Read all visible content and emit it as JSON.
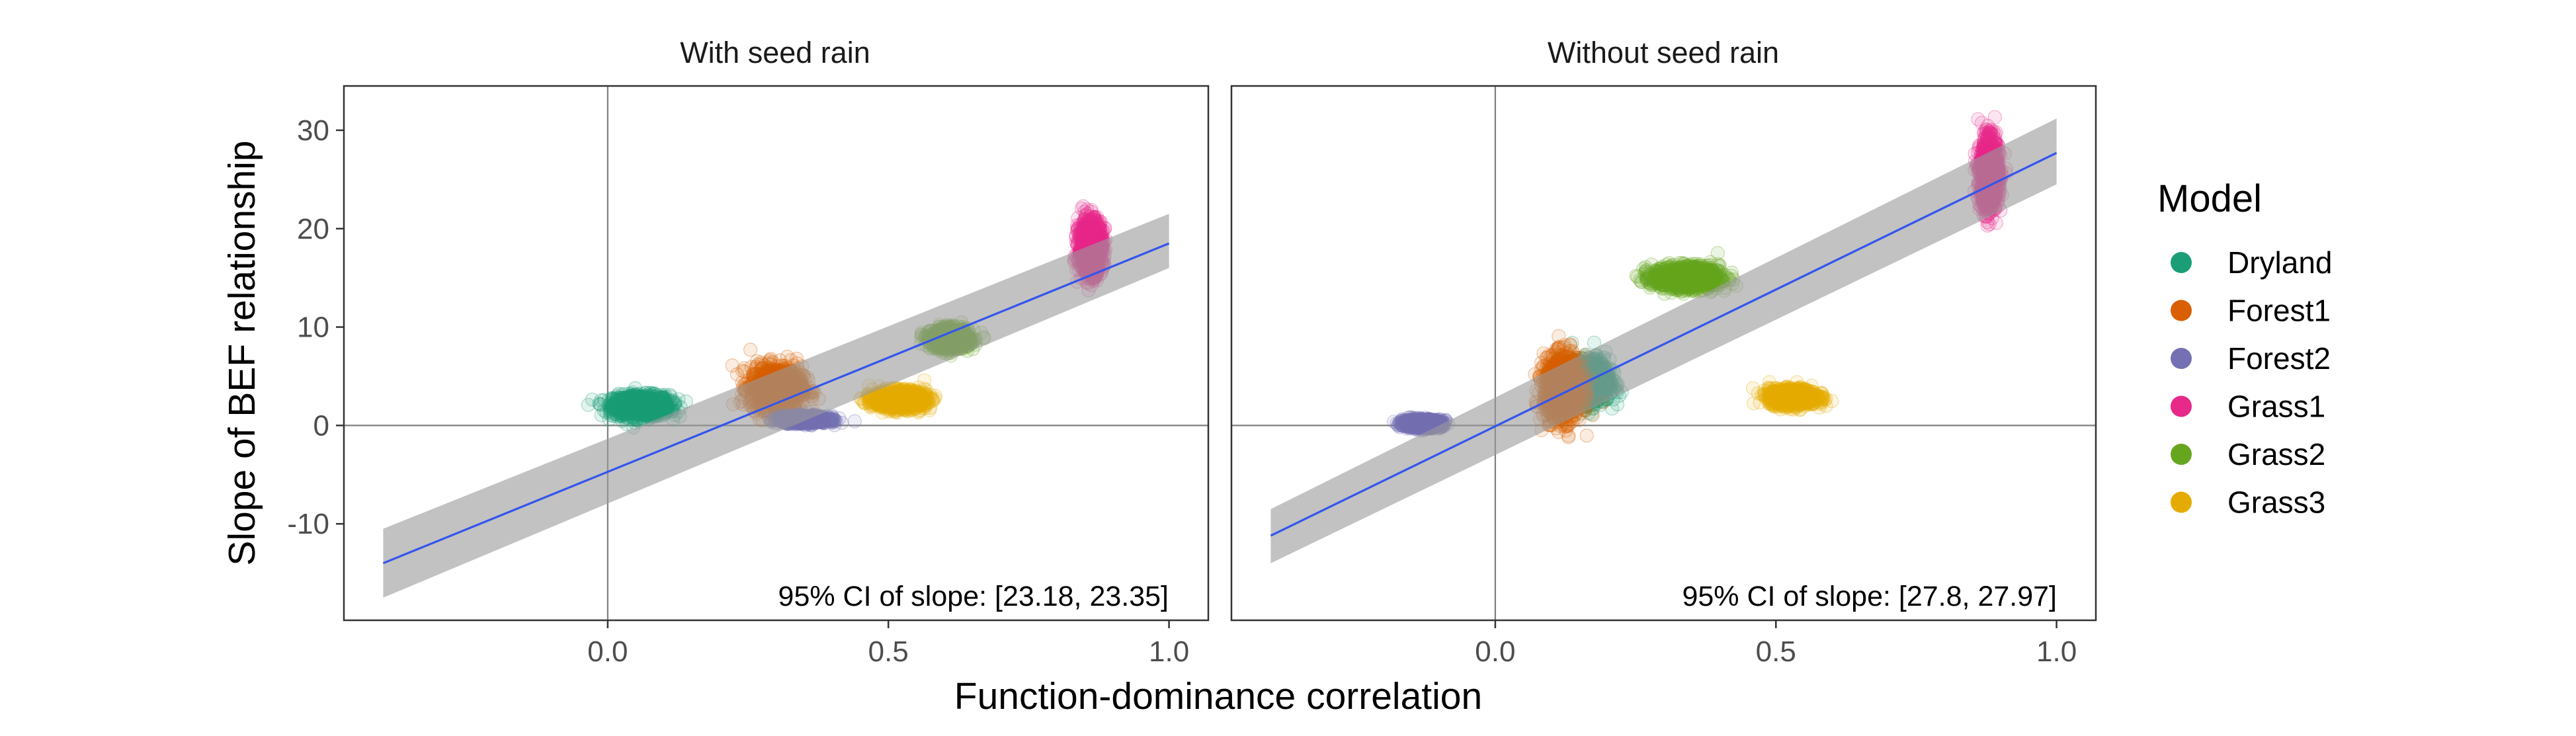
{
  "chart_data": {
    "type": "scatter",
    "xlabel": "Function-dominance correlation",
    "ylabel": "Slope of BEF relationship",
    "xlim": [
      -0.47,
      1.07
    ],
    "ylim": [
      -19.8,
      34.5
    ],
    "x_ticks": [
      "0.0",
      "0.5",
      "1.0"
    ],
    "x_tick_values": [
      0,
      0.5,
      1
    ],
    "y_ticks": [
      "30",
      "20",
      "10",
      "0",
      "-10"
    ],
    "y_tick_values": [
      30,
      20,
      10,
      0,
      -10
    ],
    "reference_lines": {
      "x": 0,
      "y": 0
    },
    "legend": {
      "title": "Model",
      "placement": "right",
      "entries": [
        {
          "label": "Dryland",
          "color": "#1b9e77"
        },
        {
          "label": "Forest1",
          "color": "#d95f02"
        },
        {
          "label": "Forest2",
          "color": "#7570b3"
        },
        {
          "label": "Grass1",
          "color": "#e7298a"
        },
        {
          "label": "Grass2",
          "color": "#66a61e"
        },
        {
          "label": "Grass3",
          "color": "#e6ab02"
        }
      ]
    },
    "panels": [
      {
        "title": "With seed rain",
        "annotation": "95% CI of slope: [23.18, 23.35]",
        "regression": {
          "x": [
            -0.4,
            1.0
          ],
          "y": [
            -14.0,
            18.5
          ],
          "band_lower": [
            -17.5,
            16.0
          ],
          "band_upper": [
            -10.5,
            21.5
          ]
        },
        "clusters": [
          {
            "model": "Dryland",
            "x_center": 0.06,
            "y_center": 2.0,
            "x_spread": 0.06,
            "y_spread": 1.3
          },
          {
            "model": "Forest1",
            "x_center": 0.3,
            "y_center": 3.8,
            "x_spread": 0.055,
            "y_spread": 2.6
          },
          {
            "model": "Forest2",
            "x_center": 0.35,
            "y_center": 0.6,
            "x_spread": 0.05,
            "y_spread": 0.45
          },
          {
            "model": "Grass1",
            "x_center": 0.86,
            "y_center": 18.2,
            "x_spread": 0.025,
            "y_spread": 3.2
          },
          {
            "model": "Grass2",
            "x_center": 0.61,
            "y_center": 8.8,
            "x_spread": 0.04,
            "y_spread": 1.2
          },
          {
            "model": "Grass3",
            "x_center": 0.52,
            "y_center": 2.6,
            "x_spread": 0.055,
            "y_spread": 1.1
          }
        ]
      },
      {
        "title": "Without seed rain",
        "annotation": "95% CI of slope: [27.8, 27.97]",
        "regression": {
          "x": [
            -0.4,
            1.0
          ],
          "y": [
            -11.2,
            27.7
          ],
          "band_lower": [
            -14.0,
            24.5
          ],
          "band_upper": [
            -8.5,
            31.2
          ]
        },
        "clusters": [
          {
            "model": "Dryland",
            "x_center": 0.17,
            "y_center": 4.5,
            "x_spread": 0.04,
            "y_spread": 2.6
          },
          {
            "model": "Forest1",
            "x_center": 0.12,
            "y_center": 3.8,
            "x_spread": 0.04,
            "y_spread": 3.8
          },
          {
            "model": "Forest2",
            "x_center": -0.13,
            "y_center": 0.2,
            "x_spread": 0.04,
            "y_spread": 0.5
          },
          {
            "model": "Grass1",
            "x_center": 0.88,
            "y_center": 25.5,
            "x_spread": 0.02,
            "y_spread": 4.2
          },
          {
            "model": "Grass2",
            "x_center": 0.34,
            "y_center": 15.0,
            "x_spread": 0.07,
            "y_spread": 1.4
          },
          {
            "model": "Grass3",
            "x_center": 0.53,
            "y_center": 2.9,
            "x_spread": 0.05,
            "y_spread": 1.0
          }
        ]
      }
    ]
  }
}
